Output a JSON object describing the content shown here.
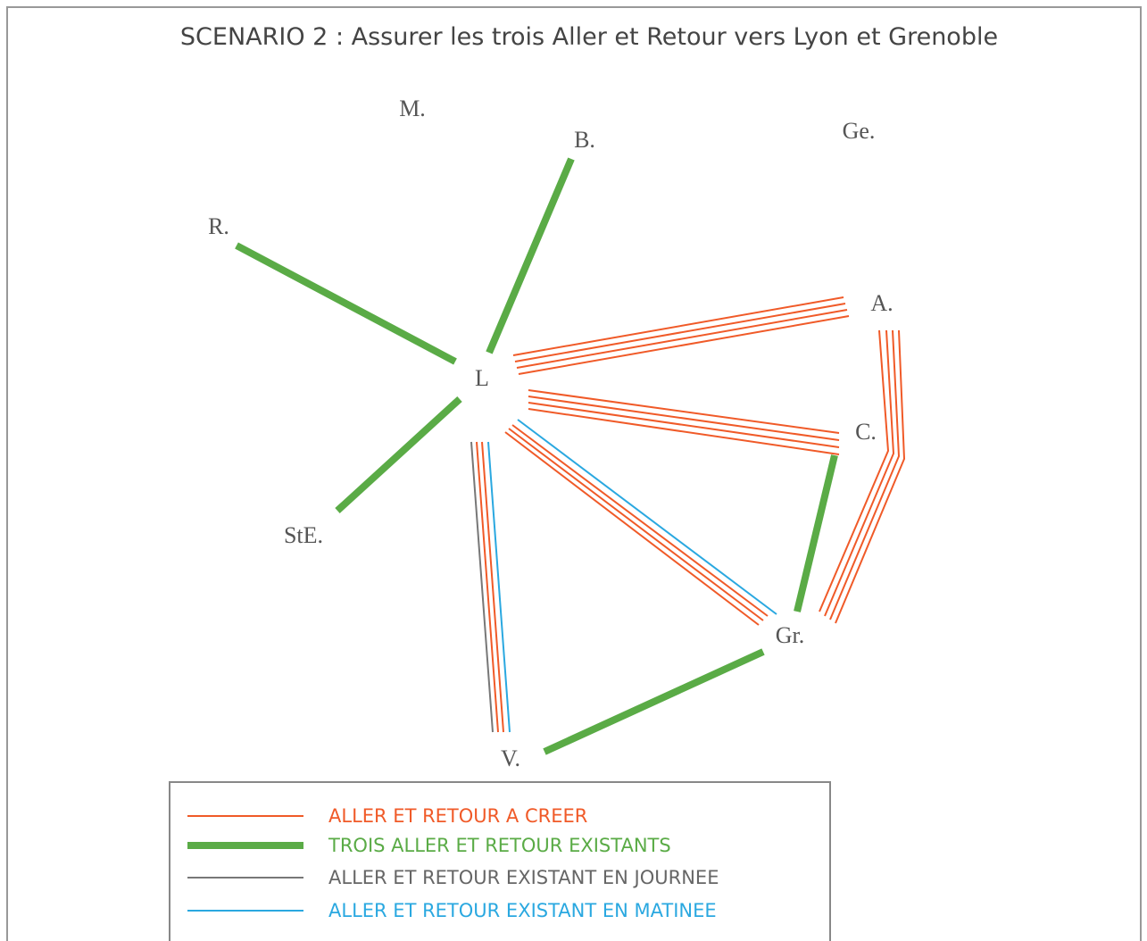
{
  "title": "SCENARIO 2 : Assurer les trois Aller et Retour vers Lyon et Grenoble",
  "nodes": [
    {
      "label": "M."
    },
    {
      "label": "B."
    },
    {
      "label": "Ge."
    },
    {
      "label": "R."
    },
    {
      "label": "A."
    },
    {
      "label": "L"
    },
    {
      "label": "C."
    },
    {
      "label": "StE."
    },
    {
      "label": "Gr."
    },
    {
      "label": "V."
    }
  ],
  "legend": [
    {
      "label": "ALLER ET RETOUR A CREER"
    },
    {
      "label": "TROIS ALLER ET RETOUR EXISTANTS"
    },
    {
      "label": "ALLER ET RETOUR EXISTANT EN JOURNEE"
    },
    {
      "label": "ALLER ET RETOUR EXISTANT EN MATINEE"
    }
  ]
}
